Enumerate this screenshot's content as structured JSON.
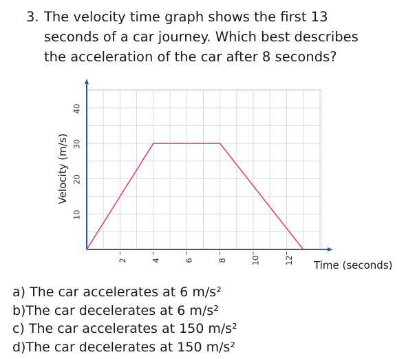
{
  "question": {
    "number": "3.",
    "lines": [
      "The velocity time graph shows the first 13",
      "seconds of a car journey. Which best describes",
      "the acceleration of the car after 8 seconds?"
    ]
  },
  "chart_data": {
    "type": "line",
    "xlabel": "Time (seconds)",
    "ylabel": "Velocity (m/s)",
    "x_ticks": [
      2,
      4,
      6,
      8,
      10,
      12
    ],
    "y_ticks": [
      10,
      20,
      30,
      40
    ],
    "xlim": [
      0,
      14
    ],
    "ylim": [
      0,
      42
    ],
    "grid": true,
    "series": [
      {
        "x": [
          0,
          4,
          8,
          13
        ],
        "y": [
          0,
          30,
          30,
          0
        ],
        "color": "#e8417a"
      }
    ],
    "axis_color": "#1f5fa8",
    "grid_color": "#d9d9d9"
  },
  "options": [
    {
      "label": "a) The car accelerates at 6 m/s²"
    },
    {
      "label": "b)The car decelerates at 6 m/s²"
    },
    {
      "label": "c) The car accelerates at 150 m/s²"
    },
    {
      "label": "d)The car decelerates at 150 m/s²"
    }
  ]
}
